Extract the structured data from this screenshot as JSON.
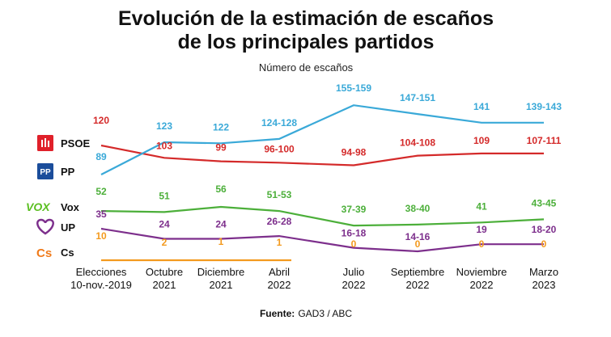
{
  "chart_data": {
    "type": "line",
    "title_line1": "Evolución de la estimación de escaños",
    "title_line2": "de los principales partidos",
    "subtitle": "Número de escaños",
    "ylabel": "Número de escaños",
    "source_label": "Fuente:",
    "source_value": "GAD3 / ABC",
    "categories": [
      [
        "Elecciones",
        "10-nov.-2019"
      ],
      [
        "Octubre",
        "2021"
      ],
      [
        "Diciembre",
        "2021"
      ],
      [
        "Abril",
        "2022"
      ],
      [
        "Julio",
        "2022"
      ],
      [
        "Septiembre",
        "2022"
      ],
      [
        "Noviembre",
        "2022"
      ],
      [
        "Marzo",
        "2023"
      ]
    ],
    "ylim": [
      0,
      160
    ],
    "series": [
      {
        "name": "PSOE",
        "color": "#d42a2a",
        "icon": "psoe-logo-icon",
        "values": [
          120,
          103,
          99,
          98,
          96,
          106,
          109,
          109
        ],
        "labels": [
          "120",
          "103",
          "99",
          "96-100",
          "94-98",
          "104-108",
          "109",
          "107-111"
        ]
      },
      {
        "name": "PP",
        "color": "#3aa9d8",
        "icon": "pp-logo-icon",
        "values": [
          89,
          123,
          122,
          126,
          157,
          149,
          141,
          141
        ],
        "labels": [
          "89",
          "123",
          "122",
          "124-128",
          "155-159",
          "147-151",
          "141",
          "139-143"
        ]
      },
      {
        "name": "Vox",
        "color": "#4caf3a",
        "icon": "vox-logo-icon",
        "values": [
          52,
          51,
          56,
          52,
          38,
          39,
          41,
          44
        ],
        "labels": [
          "52",
          "51",
          "56",
          "51-53",
          "37-39",
          "38-40",
          "41",
          "43-45"
        ]
      },
      {
        "name": "UP",
        "color": "#7d2f8c",
        "icon": "up-logo-icon",
        "values": [
          35,
          24,
          24,
          27,
          17,
          15,
          19,
          19
        ],
        "labels": [
          "35",
          "24",
          "24",
          "26-28",
          "16-18",
          "14-16",
          "19",
          "18-20"
        ]
      },
      {
        "name": "Cs",
        "color": "#f39a1e",
        "icon": "cs-logo-icon",
        "values": [
          10,
          2,
          1,
          1,
          null,
          null,
          null,
          null
        ],
        "labels": [
          "10",
          "2",
          "1",
          "1",
          "0",
          "0",
          "0",
          "0"
        ]
      }
    ]
  }
}
